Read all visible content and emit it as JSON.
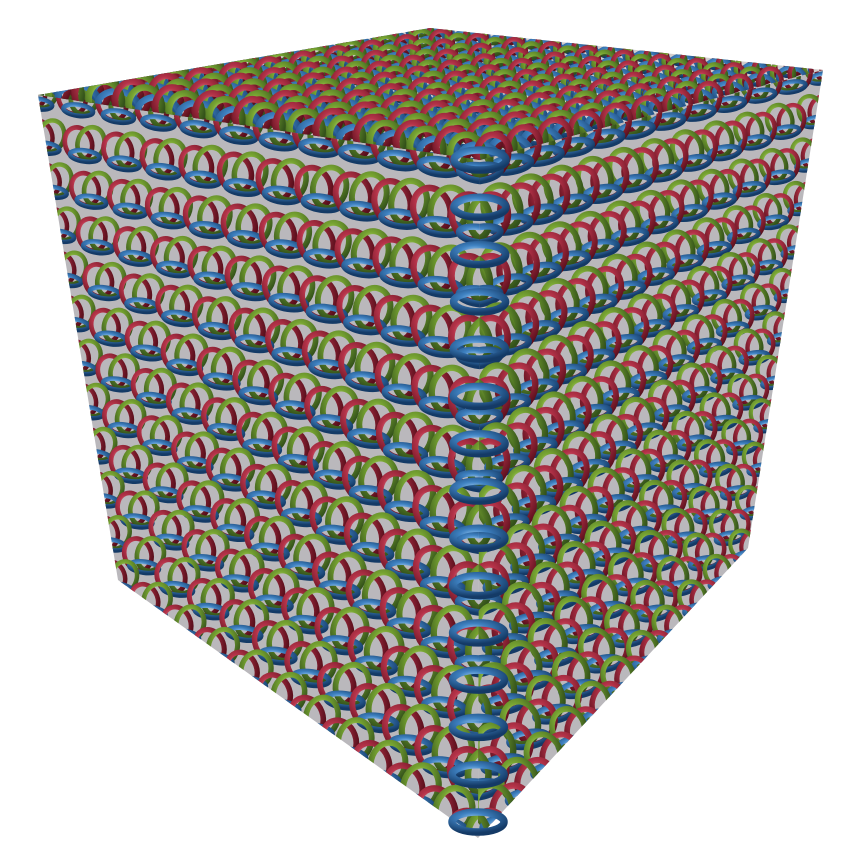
{
  "image": {
    "subject": "chainmail-cube",
    "ring_colors": {
      "blue": "#2f6fae",
      "red": "#a8283c",
      "green": "#6f9a2a"
    },
    "background": "#ffffff"
  }
}
